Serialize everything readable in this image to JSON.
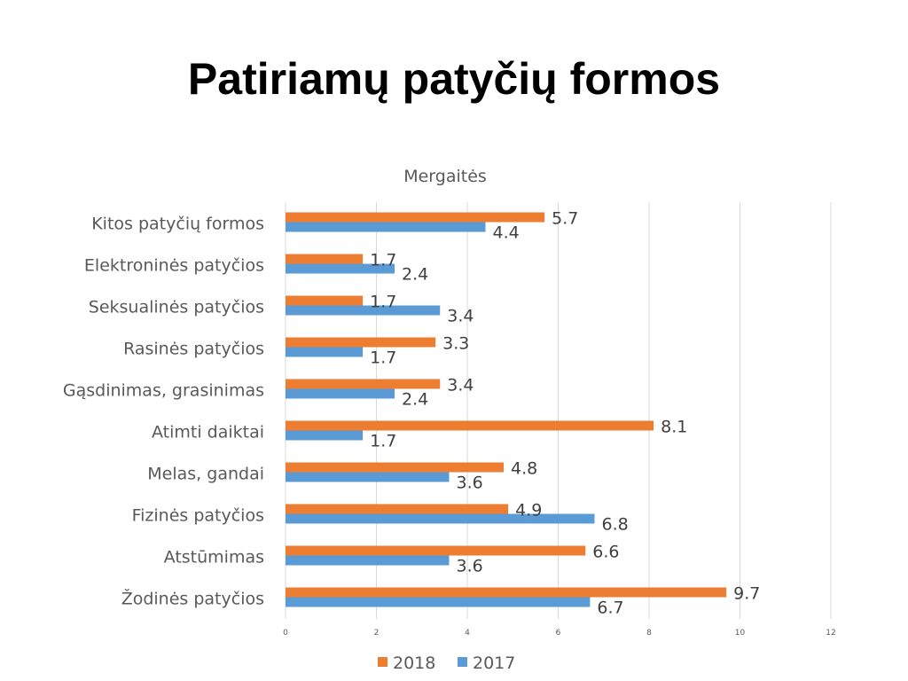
{
  "slide": {
    "title": "Patiriamų patyčių formos"
  },
  "chart_data": {
    "type": "bar",
    "orientation": "horizontal",
    "title": "Mergaitės",
    "categories": [
      "Kitos patyčių formos",
      "Elektroninės patyčios",
      "Seksualinės patyčios",
      "Rasinės patyčios",
      "Gąsdinimas, grasinimas",
      "Atimti daiktai",
      "Melas, gandai",
      "Fizinės patyčios",
      "Atstūmimas",
      "Žodinės patyčios"
    ],
    "series": [
      {
        "name": "2018",
        "color": "#ED7D31",
        "values": [
          5.7,
          1.7,
          1.7,
          3.3,
          3.4,
          8.1,
          4.8,
          4.9,
          6.6,
          9.7
        ]
      },
      {
        "name": "2017",
        "color": "#5B9BD5",
        "values": [
          4.4,
          2.4,
          3.4,
          1.7,
          2.4,
          1.7,
          3.6,
          6.8,
          3.6,
          6.7
        ]
      }
    ],
    "xlim": [
      0,
      12
    ],
    "xticks": [
      "0",
      "2",
      "4",
      "6",
      "8",
      "10",
      "12"
    ],
    "grid": true,
    "legend_position": "bottom"
  }
}
